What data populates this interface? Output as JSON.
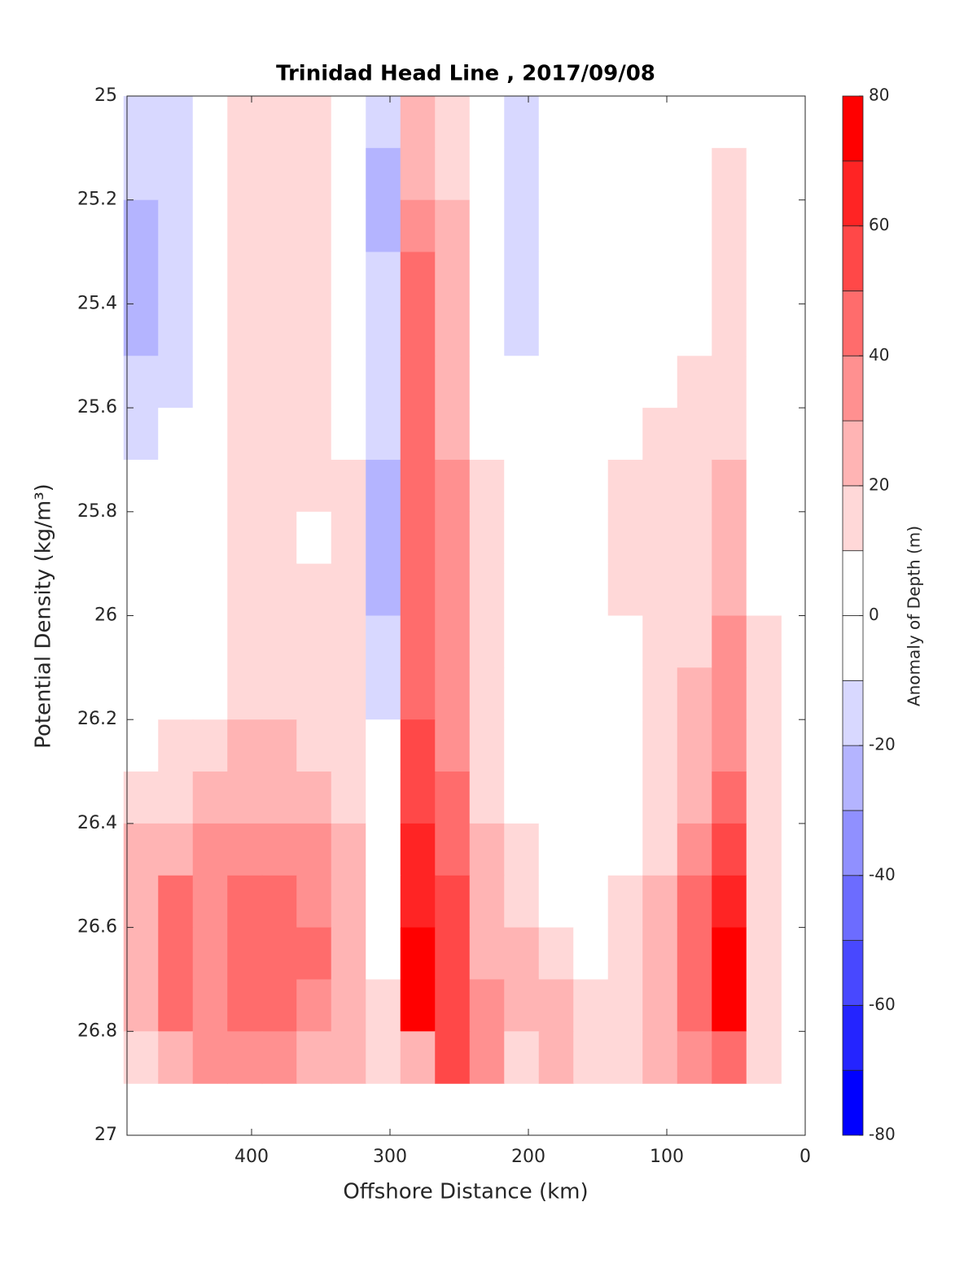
{
  "chart_data": {
    "type": "contourf",
    "title": "Trinidad Head Line , 2017/09/08",
    "x_label": "Offshore Distance (km)",
    "y_label": "Potential Density (kg/m³)",
    "xlim": [
      490,
      0
    ],
    "xticks": [
      400,
      300,
      200,
      100,
      0
    ],
    "ylim": [
      25,
      27
    ],
    "yticks": [
      25,
      25.2,
      25.4,
      25.6,
      25.8,
      26,
      26.2,
      26.4,
      26.6,
      26.8,
      27
    ],
    "x": [
      480,
      455,
      430,
      405,
      380,
      355,
      330,
      305,
      280,
      255,
      230,
      205,
      180,
      155,
      130,
      105,
      80,
      55,
      30
    ],
    "y": [
      25.05,
      25.15,
      25.25,
      25.35,
      25.45,
      25.55,
      25.65,
      25.75,
      25.85,
      25.95,
      26.05,
      26.15,
      26.25,
      26.35,
      26.45,
      26.55,
      26.65,
      26.75,
      26.85
    ],
    "z": [
      [
        -12,
        -12,
        5,
        12,
        12,
        12,
        5,
        -15,
        20,
        12,
        5,
        -15,
        5,
        5,
        5,
        5,
        5,
        5,
        5
      ],
      [
        -15,
        -12,
        5,
        12,
        12,
        12,
        5,
        -25,
        25,
        15,
        5,
        -15,
        5,
        5,
        5,
        5,
        5,
        12,
        5
      ],
      [
        -25,
        -15,
        5,
        12,
        12,
        12,
        5,
        -25,
        35,
        20,
        5,
        -15,
        5,
        5,
        5,
        5,
        5,
        15,
        5
      ],
      [
        -25,
        -15,
        5,
        12,
        12,
        12,
        5,
        -15,
        45,
        25,
        5,
        -15,
        5,
        5,
        5,
        5,
        5,
        15,
        5
      ],
      [
        -22,
        -15,
        5,
        12,
        12,
        12,
        5,
        -15,
        45,
        25,
        5,
        -12,
        5,
        5,
        5,
        5,
        5,
        15,
        5
      ],
      [
        -12,
        -12,
        5,
        12,
        15,
        12,
        5,
        -12,
        45,
        28,
        5,
        5,
        5,
        5,
        5,
        5,
        12,
        15,
        5
      ],
      [
        -12,
        5,
        5,
        12,
        15,
        12,
        5,
        -15,
        45,
        28,
        5,
        5,
        5,
        5,
        5,
        12,
        12,
        15,
        5
      ],
      [
        5,
        5,
        5,
        12,
        12,
        12,
        12,
        -25,
        45,
        30,
        15,
        5,
        5,
        5,
        15,
        15,
        15,
        20,
        5
      ],
      [
        5,
        5,
        5,
        12,
        12,
        5,
        12,
        -25,
        45,
        30,
        15,
        5,
        5,
        5,
        15,
        15,
        15,
        25,
        5
      ],
      [
        5,
        5,
        5,
        12,
        12,
        12,
        12,
        -25,
        45,
        30,
        15,
        5,
        5,
        5,
        15,
        15,
        15,
        25,
        5
      ],
      [
        5,
        5,
        5,
        12,
        12,
        12,
        12,
        -15,
        45,
        30,
        15,
        5,
        5,
        5,
        5,
        12,
        15,
        30,
        12
      ],
      [
        5,
        5,
        5,
        12,
        12,
        12,
        12,
        -15,
        45,
        30,
        15,
        5,
        5,
        5,
        5,
        12,
        20,
        30,
        12
      ],
      [
        5,
        12,
        12,
        22,
        25,
        15,
        12,
        5,
        55,
        35,
        15,
        5,
        5,
        5,
        5,
        15,
        25,
        35,
        12
      ],
      [
        12,
        15,
        25,
        28,
        28,
        25,
        15,
        5,
        55,
        40,
        15,
        5,
        5,
        5,
        5,
        15,
        28,
        40,
        15
      ],
      [
        20,
        28,
        35,
        35,
        35,
        32,
        22,
        5,
        60,
        45,
        20,
        12,
        5,
        5,
        5,
        15,
        35,
        50,
        15
      ],
      [
        28,
        40,
        35,
        42,
        42,
        35,
        25,
        5,
        65,
        50,
        22,
        15,
        5,
        5,
        12,
        25,
        40,
        65,
        15
      ],
      [
        28,
        42,
        35,
        42,
        45,
        42,
        25,
        5,
        75,
        55,
        28,
        22,
        12,
        5,
        15,
        28,
        45,
        75,
        15
      ],
      [
        25,
        42,
        35,
        42,
        42,
        35,
        25,
        12,
        75,
        55,
        30,
        22,
        25,
        12,
        15,
        25,
        42,
        75,
        15
      ],
      [
        15,
        25,
        30,
        35,
        30,
        28,
        25,
        15,
        25,
        55,
        30,
        15,
        25,
        15,
        15,
        25,
        35,
        40,
        12
      ]
    ],
    "colorbar": {
      "label": "Anomaly of Depth (m)",
      "levels": [
        -80,
        -70,
        -60,
        -50,
        -40,
        -30,
        -20,
        -10,
        0,
        10,
        20,
        30,
        40,
        50,
        60,
        70,
        80
      ],
      "colors": [
        "#0000ff",
        "#2424ff",
        "#4848ff",
        "#6c6cff",
        "#9090ff",
        "#b4b4ff",
        "#d8d8ff",
        "#ffffff",
        "#ffffff",
        "#ffd8d8",
        "#ffb4b4",
        "#ff9090",
        "#ff6c6c",
        "#ff4848",
        "#ff2424",
        "#ff0000"
      ],
      "ticks": [
        -80,
        -60,
        -40,
        -20,
        0,
        20,
        40,
        60,
        80
      ]
    }
  }
}
